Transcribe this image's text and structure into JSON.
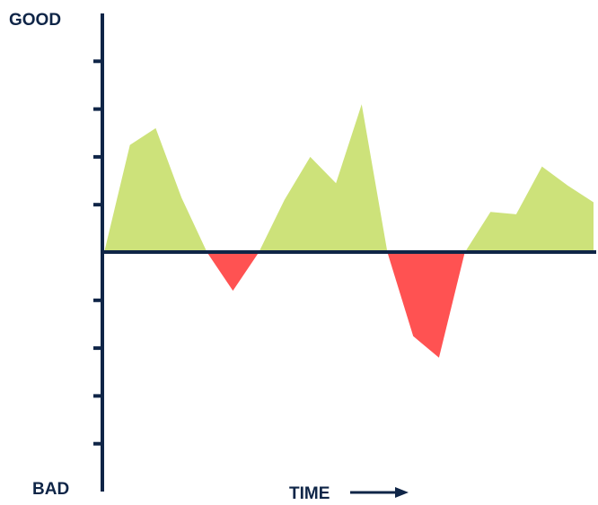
{
  "chart_data": {
    "type": "area",
    "title": "",
    "xlabel": "TIME",
    "ylabel": "",
    "y_top_label": "GOOD",
    "y_bottom_label": "BAD",
    "x": [
      0,
      1,
      2,
      3,
      4,
      5,
      6,
      7,
      8,
      9,
      10,
      11,
      12,
      13,
      14,
      15,
      16,
      17,
      18,
      19
    ],
    "values": [
      0,
      4.5,
      5.2,
      2.3,
      0,
      -1.6,
      0,
      2.2,
      4.0,
      2.9,
      6.2,
      0,
      -3.5,
      -4.4,
      0,
      1.7,
      1.6,
      3.6,
      2.8,
      2.1
    ],
    "xlim": [
      0,
      19
    ],
    "ylim": [
      -10,
      10
    ],
    "y_ticks": [
      -8,
      -6,
      -4,
      -2,
      2,
      4,
      6,
      8
    ],
    "grid": false,
    "legend": "none",
    "colors": {
      "positive": "#cde27a",
      "negative": "#ff5252",
      "axis": "#0f2547"
    }
  }
}
